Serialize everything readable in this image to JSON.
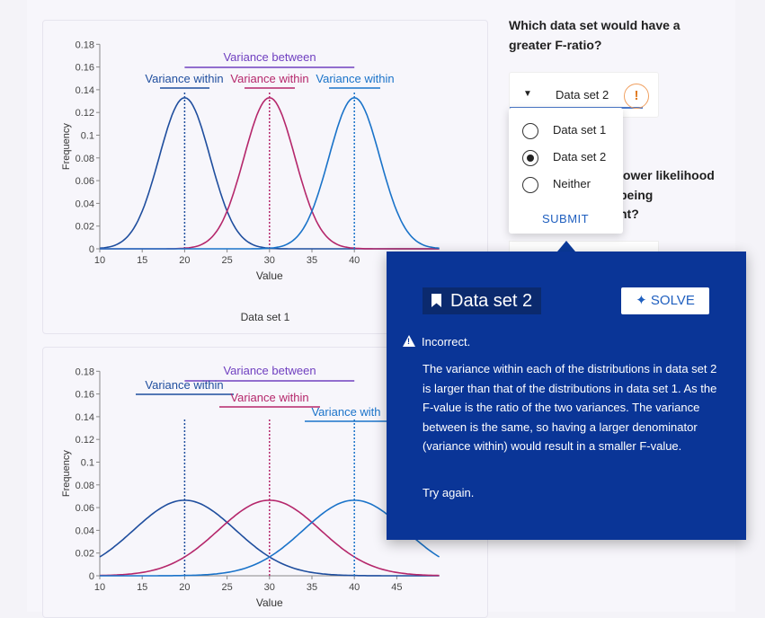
{
  "question1": {
    "text": "Which data set would have a greater F-ratio?",
    "selected_value": "Data set 2",
    "warning_symbol": "!",
    "options": [
      "Data set 1",
      "Data set 2",
      "Neither"
    ],
    "selected_index": 1,
    "submit_label": "SUBMIT"
  },
  "question2": {
    "line1": "lower likelihood",
    "line2": "being",
    "line3": "nt?"
  },
  "chart1": {
    "caption": "Data set 1",
    "annotations": {
      "between": "Variance between",
      "within_left": "Variance within",
      "within_mid": "Variance within",
      "within_right": "Variance within"
    }
  },
  "chart2": {
    "annotations": {
      "between": "Variance between",
      "within_left": "Variance within",
      "within_mid": "Variance within",
      "within_right": "Variance with"
    }
  },
  "feedback": {
    "title": "Data set 2",
    "solve_label": "SOLVE",
    "status": "Incorrect.",
    "body": "The variance within each of the distributions in data set 2 is larger than that of the distributions in data set 1. As the F-value is the ratio of the two variances. The variance between is the same, so having a larger denominator (variance within) would result in a smaller F-value.",
    "try_again": "Try again."
  },
  "colors": {
    "blue_dark": "#1f4e9e",
    "magenta": "#b5276b",
    "blue_light": "#1a73c9",
    "purple": "#7040c0",
    "panel": "#0a3597",
    "accent": "#1f5fbf"
  },
  "chart_data": [
    {
      "type": "line",
      "xlabel": "Value",
      "ylabel": "Frequency",
      "xlim": [
        10,
        50
      ],
      "ylim": [
        0,
        0.18
      ],
      "xticks": [
        "10",
        "15",
        "20",
        "25",
        "30",
        "35",
        "40"
      ],
      "yticks": [
        "0",
        "0.02",
        "0.04",
        "0.06",
        "0.08",
        "0.1",
        "0.12",
        "0.14",
        "0.16",
        "0.18"
      ],
      "series": [
        {
          "mean": 20,
          "sd": 3,
          "color": "#1f4e9e"
        },
        {
          "mean": 30,
          "sd": 3,
          "color": "#b5276b"
        },
        {
          "mean": 40,
          "sd": 3,
          "color": "#1a73c9"
        }
      ]
    },
    {
      "type": "line",
      "xlabel": "Value",
      "ylabel": "Frequency",
      "xlim": [
        10,
        50
      ],
      "ylim": [
        0,
        0.18
      ],
      "xticks": [
        "10",
        "15",
        "20",
        "25",
        "30",
        "35",
        "40",
        "45"
      ],
      "yticks": [
        "0",
        "0.02",
        "0.04",
        "0.06",
        "0.08",
        "0.1",
        "0.12",
        "0.14",
        "0.16",
        "0.18"
      ],
      "series": [
        {
          "mean": 20,
          "sd": 6,
          "color": "#1f4e9e"
        },
        {
          "mean": 30,
          "sd": 6,
          "color": "#b5276b"
        },
        {
          "mean": 40,
          "sd": 6,
          "color": "#1a73c9"
        }
      ]
    }
  ]
}
